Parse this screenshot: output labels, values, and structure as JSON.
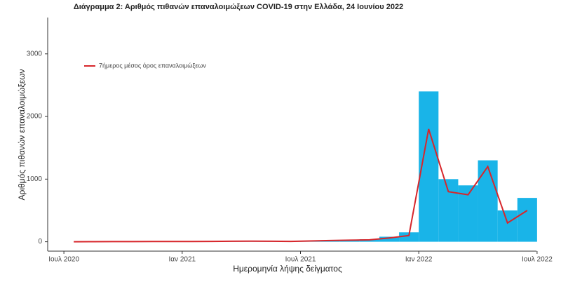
{
  "chart_data": {
    "type": "bar-line",
    "title": "Διάγραμμα 2: Αριθμός πιθανών επαναλοιμώξεων COVID-19 στην Ελλάδα, 24 Ιουνίου 2022",
    "x_label": "Ημερομηνία λήψης δείγματος",
    "y_label": "Αριθμός πιθανών επαναλοιμώξεων",
    "x": [
      "2020-07",
      "2020-08",
      "2020-09",
      "2020-10",
      "2020-11",
      "2020-12",
      "2021-01",
      "2021-02",
      "2021-03",
      "2021-04",
      "2021-05",
      "2021-06",
      "2021-07",
      "2021-08",
      "2021-09",
      "2021-10",
      "2021-11",
      "2021-12",
      "2022-01",
      "2022-02",
      "2022-03",
      "2022-04",
      "2022-05",
      "2022-06"
    ],
    "series": [
      {
        "type": "bar",
        "color": "#19b4e8",
        "values": [
          0,
          2,
          3,
          3,
          5,
          5,
          5,
          8,
          10,
          12,
          10,
          8,
          15,
          25,
          30,
          40,
          80,
          150,
          2400,
          1000,
          900,
          1300,
          500,
          700
        ]
      },
      {
        "type": "line",
        "name": "7ήμερος μέσος όρος επαναλοιμώξεων",
        "color": "#d7262b",
        "values": [
          0,
          1,
          2,
          2,
          4,
          4,
          4,
          6,
          8,
          10,
          8,
          6,
          12,
          20,
          25,
          30,
          60,
          100,
          1800,
          800,
          750,
          1200,
          300,
          500
        ]
      }
    ],
    "xlim": [
      "2020-06",
      "2022-08"
    ],
    "xticks": [
      {
        "value": "2020-07",
        "label": "Ιουλ 2020"
      },
      {
        "value": "2021-01",
        "label": "Ιαν 2021"
      },
      {
        "value": "2021-07",
        "label": "Ιουλ 2021"
      },
      {
        "value": "2022-01",
        "label": "Ιαν 2022"
      },
      {
        "value": "2022-07",
        "label": "Ιουλ 2022"
      }
    ],
    "ylim": [
      -150,
      3580
    ],
    "yticks": [
      0,
      1000,
      2000,
      3000
    ],
    "grid": false,
    "legend": "top-left"
  }
}
